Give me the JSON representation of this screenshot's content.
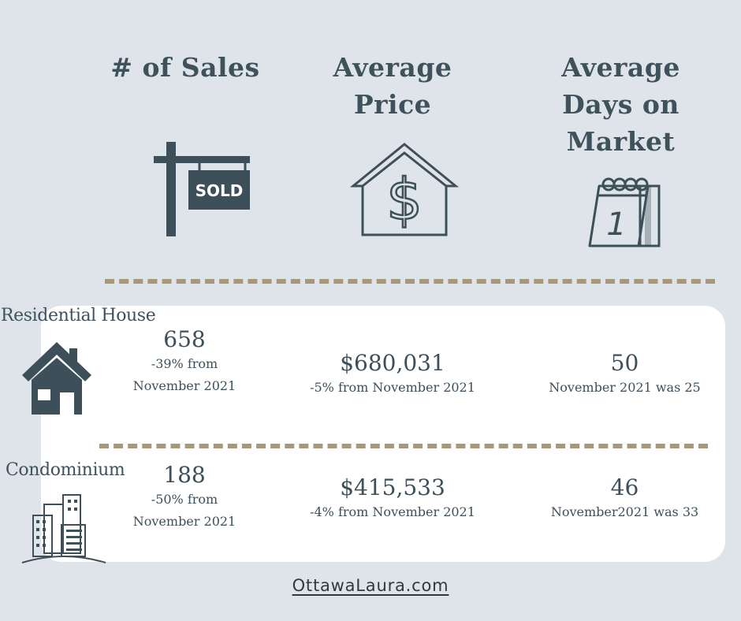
{
  "headers": {
    "sales": [
      "# of Sales"
    ],
    "price": [
      "Average",
      "Price"
    ],
    "days": [
      "Average",
      "Days on",
      "Market"
    ]
  },
  "icons": {
    "sales": "sold-sign-icon",
    "price": "house-dollar-icon",
    "days": "calendar-icon",
    "residential": "house-icon",
    "condo": "buildings-icon"
  },
  "sold_sign_text": "SOLD",
  "calendar_day": "1",
  "rows": {
    "residential": {
      "label": "Residential House",
      "sales_value": "658",
      "sales_change_1": "-39% from",
      "sales_change_2": "November 2021",
      "price_value": "$680,031",
      "price_change": "-5% from November 2021",
      "days_value": "50",
      "days_change": "November 2021 was 25"
    },
    "condo": {
      "label": "Condominium",
      "sales_value": "188",
      "sales_change_1": "-50% from",
      "sales_change_2": "November 2021",
      "price_value": "$415,533",
      "price_change": "-4% from November 2021",
      "days_value": "46",
      "days_change": "November2021 was 33"
    }
  },
  "footer": "OttawaLaura.com",
  "colors": {
    "background": "#dfe4ea",
    "text": "#3d4f59",
    "divider": "#a8987a",
    "card": "#ffffff"
  }
}
